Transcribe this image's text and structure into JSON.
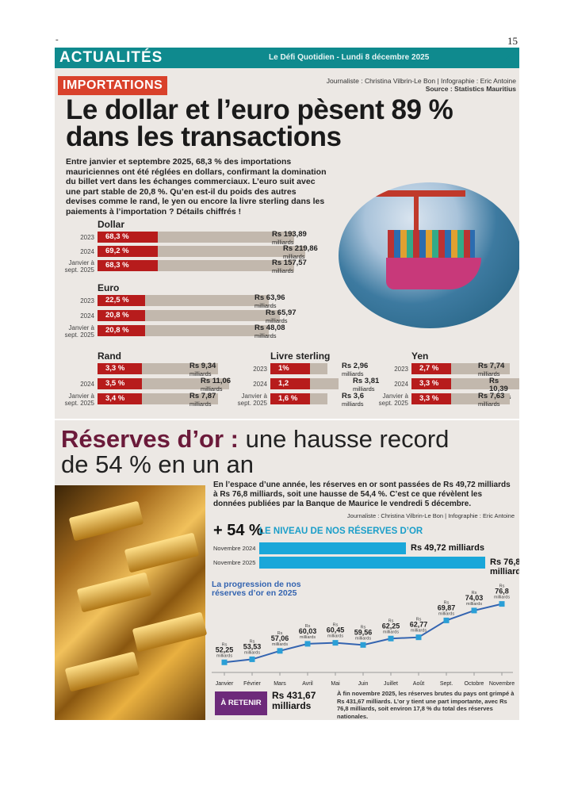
{
  "page": {
    "mark": "-",
    "number": "15"
  },
  "banner": {
    "section": "ACTUALITÉS",
    "dateline": "Le Défi Quotidien - Lundi 8 décembre 2025"
  },
  "article1": {
    "tag": "IMPORTATIONS",
    "credit_journalist": "Journaliste : Christina Vilbrin-Le Bon | Infographie : Eric Antoine",
    "credit_source": "Source : Statistics Mauritius",
    "headline_line1": "Le dollar et l’euro pèsent 89 %",
    "headline_line2": "dans les transactions",
    "intro": "Entre janvier et septembre 2025, 68,3 % des importations mauriciennes ont été réglées en dollars, confirmant la domination du billet vert dans les échanges commerciaux. L’euro suit avec une part stable de 20,8 %. Qu’en est-il du poids des autres devises comme le rand, le yen ou encore la livre sterling dans les paiements à l’importation ? Détails chiffrés !"
  },
  "currencies": [
    {
      "name": "Dollar",
      "unit": "milliards",
      "rows": [
        {
          "period": "2023",
          "share_label": "68,3 %",
          "share": 68.3,
          "amount": "Rs 193,89"
        },
        {
          "period": "2024",
          "share_label": "69,2 %",
          "share": 69.2,
          "amount": "Rs 219,86"
        },
        {
          "period": "Janvier à sept. 2025",
          "share_label": "68,3 %",
          "share": 68.3,
          "amount": "Rs 157,57"
        }
      ]
    },
    {
      "name": "Euro",
      "unit": "milliards",
      "rows": [
        {
          "period": "2023",
          "share_label": "22,5 %",
          "share": 22.5,
          "amount": "Rs 63,96"
        },
        {
          "period": "2024",
          "share_label": "20,8 %",
          "share": 20.8,
          "amount": "Rs 65,97"
        },
        {
          "period": "Janvier à sept. 2025",
          "share_label": "20,8 %",
          "share": 20.8,
          "amount": "Rs 48,08"
        }
      ]
    },
    {
      "name": "Rand",
      "unit": "milliards",
      "rows": [
        {
          "period": "",
          "share_label": "3,3 %",
          "share": 3.3,
          "amount": "Rs 9,34"
        },
        {
          "period": "2024",
          "share_label": "3,5 %",
          "share": 3.5,
          "amount": "Rs 11,06"
        },
        {
          "period": "Janvier à sept. 2025",
          "share_label": "3,4 %",
          "share": 3.4,
          "amount": "Rs 7,87"
        }
      ]
    },
    {
      "name": "Livre sterling",
      "unit": "milliards",
      "rows": [
        {
          "period": "2023",
          "share_label": "1%",
          "share": 1.0,
          "amount": "Rs 2,96"
        },
        {
          "period": "2024",
          "share_label": "1,2",
          "share": 1.2,
          "amount": "Rs 3,81"
        },
        {
          "period": "Janvier à sept. 2025",
          "share_label": "1,6 %",
          "share": 1.6,
          "amount": "Rs 3,6"
        }
      ]
    },
    {
      "name": "Yen",
      "unit": "milliards",
      "rows": [
        {
          "period": "2023",
          "share_label": "2,7 %",
          "share": 2.7,
          "amount": "Rs 7,74"
        },
        {
          "period": "2024",
          "share_label": "3,3 %",
          "share": 3.3,
          "amount": "Rs 10,39"
        },
        {
          "period": "Janvier à sept. 2025",
          "share_label": "3,3 %",
          "share": 3.3,
          "amount": "Rs 7,63"
        }
      ]
    }
  ],
  "article2": {
    "headline_bold": "Réserves d’or :",
    "headline_rest1": " une hausse record",
    "headline_line2": "de 54 % en un an",
    "intro": "En l’espace d’une année, les réserves en or sont passées de Rs 49,72 milliards à Rs 76,8 milliards, soit une hausse de 54,4 %. C’est ce que révèlent les données publiées par la Banque de Maurice le vendredi 5 décembre.",
    "credit": "Journaliste : Christina Vilbrin-Le Bon | Infographie : Eric Antoine",
    "big_pct": "+ 54 %",
    "niveau_title": "LE NIVEAU DE NOS RÉSERVES D’OR",
    "reserves": [
      {
        "label": "Novembre 2024",
        "value": 49.72,
        "value_label": "Rs 49,72 milliards"
      },
      {
        "label": "Novembre 2025",
        "value": 76.8,
        "value_label": "Rs 76,8 milliards"
      }
    ],
    "progression_title": "La progression de nos réserves d’or en 2025",
    "retenir_label": "À RETENIR",
    "retenir_amount": "Rs 431,67 milliards",
    "retenir_text": "À fin novembre 2025, les réserves brutes du pays ont grimpé à Rs 431,67 milliards. L’or y tient une part importante, avec Rs 76,8 milliards, soit environ 17,8 % du total des réserves nationales."
  },
  "chart_data": {
    "type": "line",
    "title": "La progression de nos réserves d’or en 2025",
    "x": [
      "Janvier",
      "Février",
      "Mars",
      "Avril",
      "Mai",
      "Juin",
      "Juillet",
      "Août",
      "Sept.",
      "Octobre",
      "Novembre"
    ],
    "series": [
      {
        "values": [
          52.25,
          53.53,
          57.06,
          60.03,
          60.45,
          59.56,
          62.25,
          62.77,
          69.87,
          74.03,
          76.8
        ]
      }
    ],
    "value_labels": [
      "52,25",
      "53,53",
      "57,06",
      "60,03",
      "60,45",
      "59,56",
      "62,25",
      "62,77",
      "69,87",
      "74,03",
      "76,8"
    ],
    "label_prefix": "Rs",
    "label_unit": "milliards",
    "color": "#3464b0"
  }
}
